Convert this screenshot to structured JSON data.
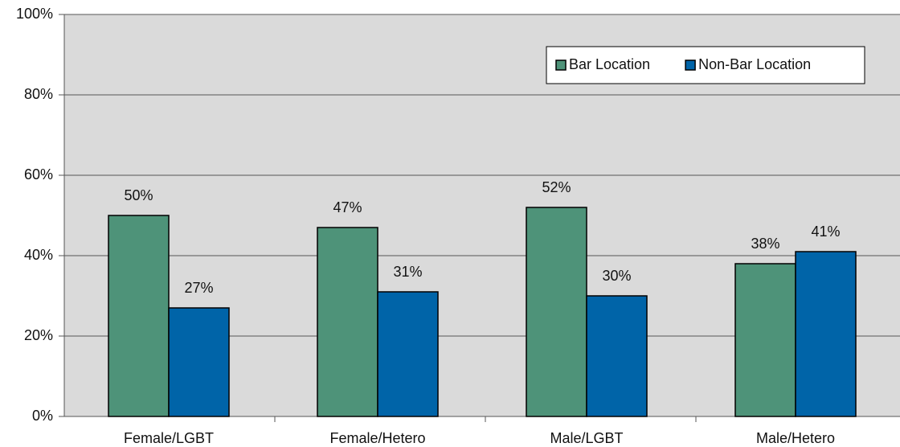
{
  "chart_data": {
    "type": "bar",
    "categories": [
      "Female/LGBT",
      "Female/Hetero",
      "Male/LGBT",
      "Male/Hetero"
    ],
    "series": [
      {
        "name": "Bar Location",
        "color": "#4e9379",
        "values": [
          50,
          47,
          52,
          38
        ],
        "value_labels": [
          "50%",
          "47%",
          "52%",
          "38%"
        ]
      },
      {
        "name": "Non-Bar Location",
        "color": "#0064a8",
        "values": [
          27,
          31,
          30,
          41
        ],
        "value_labels": [
          "27%",
          "31%",
          "30%",
          "41%"
        ]
      }
    ],
    "ylim": [
      0,
      100
    ],
    "yticks": [
      {
        "value": 0,
        "label": "0%"
      },
      {
        "value": 20,
        "label": "20%"
      },
      {
        "value": 40,
        "label": "40%"
      },
      {
        "value": 60,
        "label": "60%"
      },
      {
        "value": 80,
        "label": "80%"
      },
      {
        "value": 100,
        "label": "100%"
      }
    ],
    "grid": true,
    "legend": "top right"
  }
}
